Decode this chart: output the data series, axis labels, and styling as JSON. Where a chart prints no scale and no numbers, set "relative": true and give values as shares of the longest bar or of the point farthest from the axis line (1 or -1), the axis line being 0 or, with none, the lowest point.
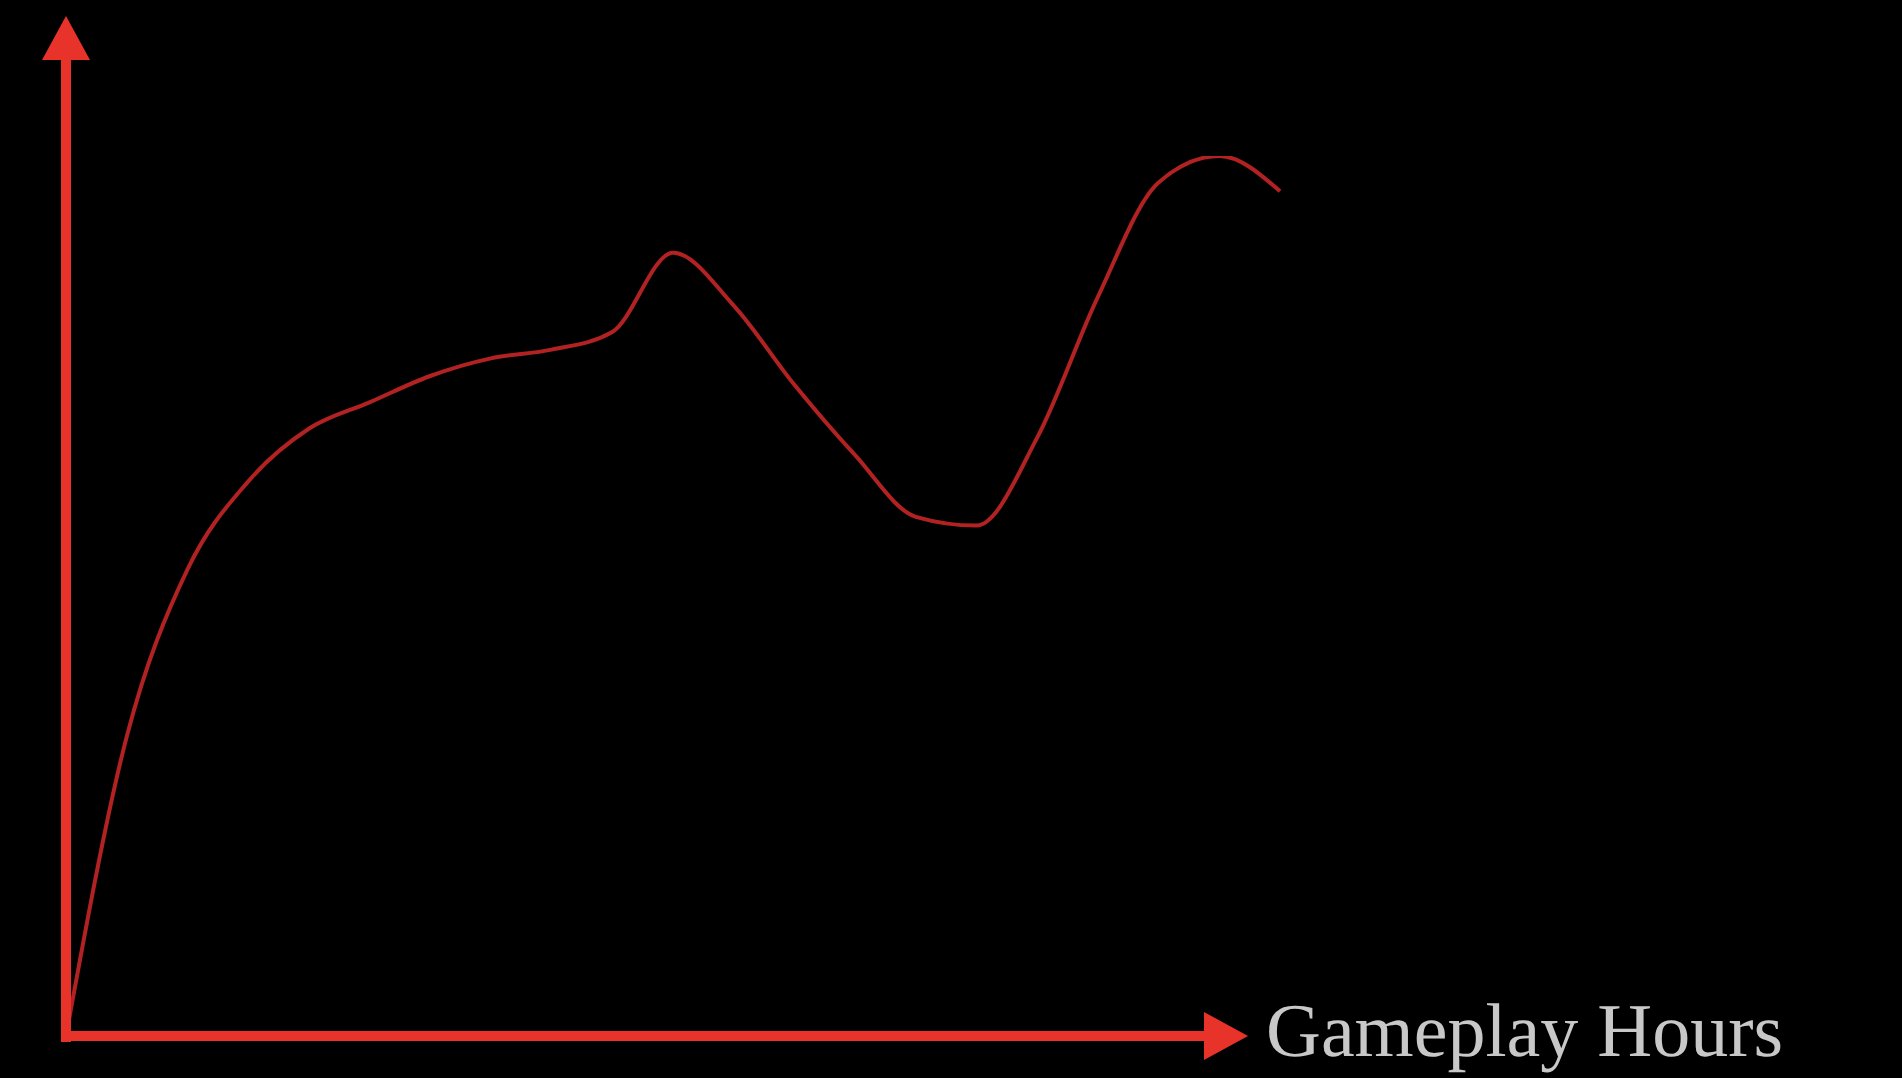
{
  "chart_data": {
    "type": "line",
    "xlabel": "Gameplay Hours",
    "relative": true,
    "categories": [
      null,
      null,
      null,
      null,
      null,
      null,
      null,
      null,
      null,
      null,
      null,
      null,
      null,
      null,
      null,
      null,
      null,
      null,
      null,
      null,
      null
    ],
    "series": [
      {
        "color": "#b22222",
        "values": [
          0,
          0.34,
          0.53,
          0.63,
          0.69,
          0.72,
          0.75,
          0.77,
          0.78,
          0.8,
          0.89,
          0.83,
          0.74,
          0.66,
          0.59,
          0.58,
          0.68,
          0.84,
          0.97,
          1,
          0.96
        ]
      }
    ]
  }
}
